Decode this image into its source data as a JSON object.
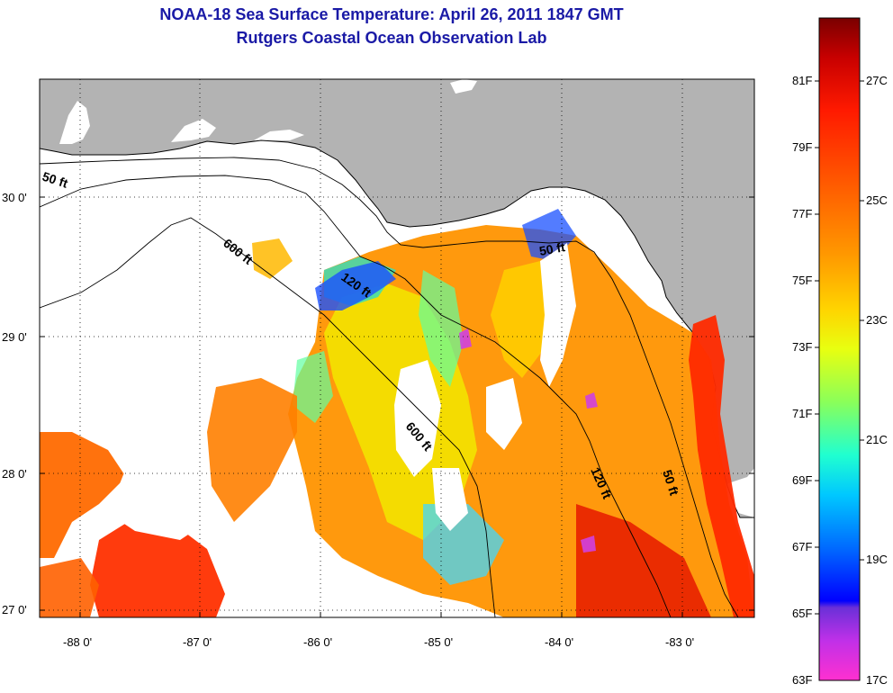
{
  "header": {
    "title": "NOAA-18 Sea Surface Temperature:  April 26, 2011 1847 GMT",
    "subtitle": "Rutgers Coastal Ocean Observation Lab"
  },
  "map": {
    "lat_ticks": [
      "30 0'",
      "29 0'",
      "28 0'",
      "27 0'"
    ],
    "lon_ticks": [
      "-88 0'",
      "-87 0'",
      "-86 0'",
      "-85 0'",
      "-84 0'",
      "-83 0'"
    ],
    "isobaths": [
      "50 ft",
      "600 ft",
      "120 ft",
      "50 ft",
      "600 ft",
      "120 ft",
      "50 ft"
    ],
    "colors": {
      "land": "#b3b3b3",
      "cloud": "#ffffff",
      "coast": "#000000"
    }
  },
  "colorbar": {
    "f_labels": [
      "81F",
      "79F",
      "77F",
      "75F",
      "73F",
      "71F",
      "69F",
      "67F",
      "65F",
      "63F"
    ],
    "c_labels": [
      "27C",
      "25C",
      "23C",
      "21C",
      "19C",
      "17C"
    ],
    "gradient_top_to_bottom": [
      "#7a0000",
      "#c80000",
      "#ff1a00",
      "#ff5a00",
      "#ff9a00",
      "#ffd400",
      "#e8ff10",
      "#8aff5a",
      "#20ffd0",
      "#00c8ff",
      "#006aff",
      "#0000ff",
      "#6a30d8",
      "#c030e8",
      "#ff30d0"
    ]
  }
}
